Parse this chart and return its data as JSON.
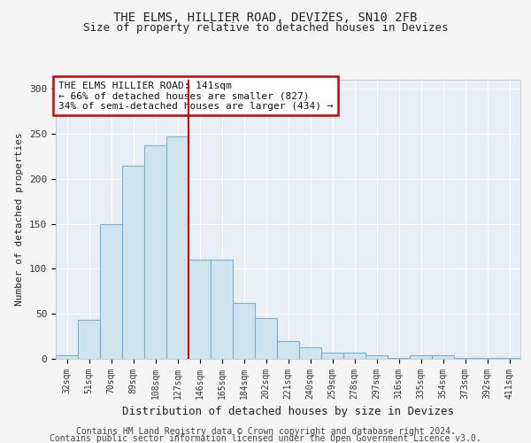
{
  "title": "THE ELMS, HILLIER ROAD, DEVIZES, SN10 2FB",
  "subtitle": "Size of property relative to detached houses in Devizes",
  "xlabel": "Distribution of detached houses by size in Devizes",
  "ylabel": "Number of detached properties",
  "categories": [
    "32sqm",
    "51sqm",
    "70sqm",
    "89sqm",
    "108sqm",
    "127sqm",
    "146sqm",
    "165sqm",
    "184sqm",
    "202sqm",
    "221sqm",
    "240sqm",
    "259sqm",
    "278sqm",
    "297sqm",
    "316sqm",
    "335sqm",
    "354sqm",
    "373sqm",
    "392sqm",
    "411sqm"
  ],
  "values": [
    4,
    43,
    150,
    215,
    237,
    247,
    110,
    110,
    62,
    45,
    20,
    13,
    7,
    7,
    4,
    1,
    4,
    4,
    1,
    1,
    1
  ],
  "bar_color": "#d0e4f0",
  "bar_edge_color": "#7ab0d0",
  "vline_x": 6.0,
  "vline_color": "#cc0000",
  "ylim": [
    0,
    310
  ],
  "yticks": [
    0,
    50,
    100,
    150,
    200,
    250,
    300
  ],
  "annotation_text": "THE ELMS HILLIER ROAD: 141sqm\n← 66% of detached houses are smaller (827)\n34% of semi-detached houses are larger (434) →",
  "annotation_box_color": "#ffffff",
  "annotation_box_edge": "#cc0000",
  "footer_line1": "Contains HM Land Registry data © Crown copyright and database right 2024.",
  "footer_line2": "Contains public sector information licensed under the Open Government Licence v3.0.",
  "plot_bg_color": "#e8eef5",
  "fig_bg_color": "#f5f5f5",
  "grid_color": "#ffffff",
  "title_fontsize": 10,
  "subtitle_fontsize": 9,
  "xlabel_fontsize": 9,
  "ylabel_fontsize": 8,
  "tick_fontsize": 7,
  "footer_fontsize": 7,
  "annot_fontsize": 8
}
